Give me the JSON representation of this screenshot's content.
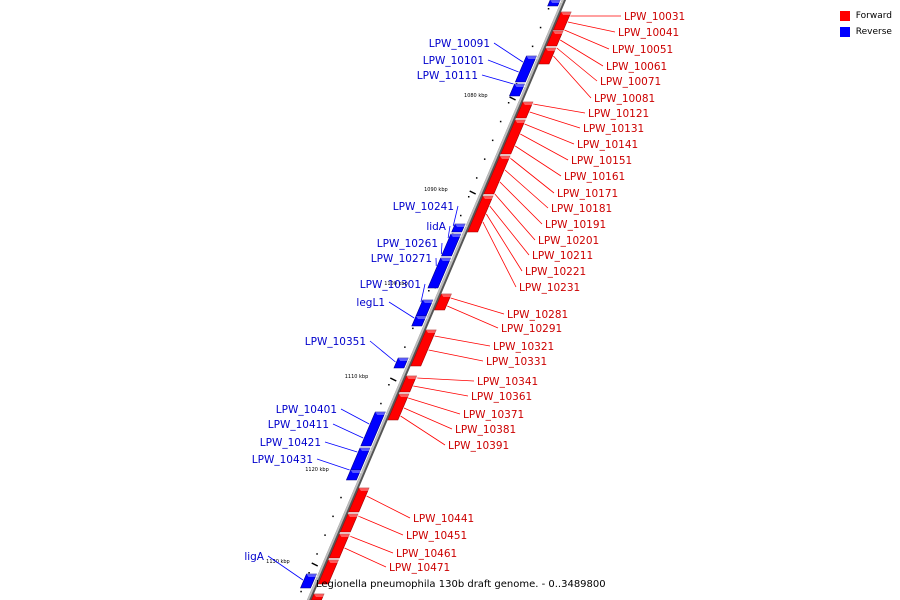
{
  "legend": {
    "items": [
      {
        "label": "Forward",
        "color": "#ff0000"
      },
      {
        "label": "Reverse",
        "color": "#0000ff"
      }
    ]
  },
  "caption": "Legionella pneumophila 130b draft genome. - 0..3489800",
  "axis": {
    "ticks": [
      "1080 kbp",
      "1090 kbp",
      "1100 kbp",
      "1110 kbp",
      "1120 kbp",
      "1130 kbp"
    ]
  },
  "genes": {
    "forward": [
      "LPW_10031",
      "LPW_10041",
      "LPW_10051",
      "LPW_10061",
      "LPW_10071",
      "LPW_10081",
      "LPW_10121",
      "LPW_10131",
      "LPW_10141",
      "LPW_10151",
      "LPW_10161",
      "LPW_10171",
      "LPW_10181",
      "LPW_10191",
      "LPW_10201",
      "LPW_10211",
      "LPW_10221",
      "LPW_10231",
      "LPW_10281",
      "LPW_10291",
      "LPW_10321",
      "LPW_10331",
      "LPW_10341",
      "LPW_10361",
      "LPW_10371",
      "LPW_10381",
      "LPW_10391",
      "LPW_10441",
      "LPW_10451",
      "LPW_10461",
      "LPW_10471"
    ],
    "reverse": [
      "LPW_10091",
      "LPW_10101",
      "LPW_10111",
      "LPW_10241",
      "lidA",
      "LPW_10261",
      "LPW_10271",
      "LPW_10301",
      "legL1",
      "LPW_10351",
      "LPW_10401",
      "LPW_10411",
      "LPW_10421",
      "LPW_10431",
      "ligA"
    ]
  }
}
